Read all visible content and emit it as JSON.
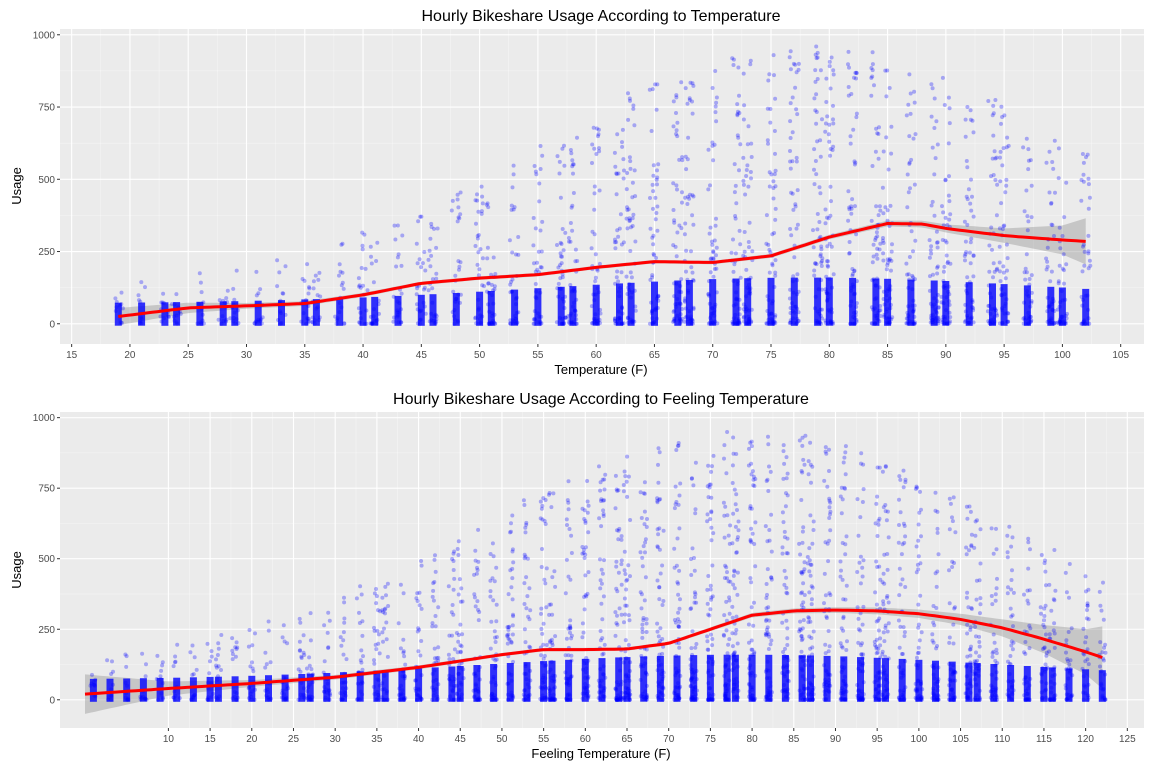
{
  "colors": {
    "panel": "#ebebeb",
    "grid_major": "#ffffff",
    "points": "#0000ff",
    "smooth": "#ff0000",
    "ribbon": "#999999"
  },
  "chart_data": [
    {
      "type": "scatter",
      "title": "Hourly Bikeshare Usage According to Temperature",
      "xlabel": "Temperature (F)",
      "ylabel": "Usage",
      "xlim": [
        14,
        107
      ],
      "ylim": [
        -70,
        1020
      ],
      "xticks": [
        15,
        20,
        25,
        30,
        35,
        40,
        45,
        50,
        55,
        60,
        65,
        70,
        75,
        80,
        85,
        90,
        95,
        100,
        105
      ],
      "yticks": [
        0,
        250,
        500,
        750,
        1000
      ],
      "x_levels": [
        19,
        21,
        23,
        24,
        26,
        28,
        29,
        31,
        33,
        35,
        36,
        38,
        40,
        41,
        43,
        45,
        46,
        48,
        50,
        51,
        53,
        55,
        57,
        58,
        60,
        62,
        63,
        65,
        67,
        68,
        70,
        72,
        73,
        75,
        77,
        79,
        80,
        82,
        84,
        85,
        87,
        89,
        90,
        92,
        94,
        95,
        97,
        99,
        100,
        102
      ],
      "usage_peak": {
        "x": 78,
        "y": 970
      },
      "smooth_x": [
        19,
        25,
        30,
        35,
        40,
        45,
        50,
        55,
        60,
        65,
        70,
        75,
        80,
        85,
        88,
        90,
        95,
        100,
        102
      ],
      "smooth_y": [
        25,
        55,
        62,
        70,
        100,
        140,
        158,
        170,
        195,
        215,
        212,
        235,
        300,
        347,
        345,
        330,
        305,
        290,
        285
      ],
      "ci_halfwidth": [
        30,
        18,
        10,
        8,
        7,
        6,
        6,
        6,
        6,
        6,
        6,
        7,
        8,
        10,
        12,
        14,
        25,
        50,
        80
      ]
    },
    {
      "type": "scatter",
      "title": "Hourly Bikeshare Usage According to Feeling Temperature",
      "xlabel": "Feeling Temperature (F)",
      "ylabel": "Usage",
      "xlim": [
        -3,
        127
      ],
      "ylim": [
        -100,
        1020
      ],
      "xticks": [
        10,
        15,
        20,
        25,
        30,
        35,
        40,
        45,
        50,
        55,
        60,
        65,
        70,
        75,
        80,
        85,
        90,
        95,
        100,
        105,
        110,
        115,
        120,
        125
      ],
      "yticks": [
        0,
        250,
        500,
        750,
        1000
      ],
      "x_levels": [
        1,
        3,
        5,
        7,
        9,
        11,
        13,
        15,
        16,
        18,
        20,
        22,
        24,
        26,
        27,
        29,
        31,
        33,
        35,
        36,
        38,
        40,
        42,
        44,
        45,
        47,
        49,
        51,
        53,
        55,
        56,
        58,
        60,
        62,
        64,
        65,
        67,
        69,
        71,
        73,
        75,
        77,
        78,
        80,
        82,
        84,
        86,
        87,
        89,
        91,
        93,
        95,
        96,
        98,
        100,
        102,
        104,
        106,
        107,
        109,
        111,
        113,
        115,
        116,
        118,
        120,
        122
      ],
      "usage_peak": {
        "x": 79,
        "y": 960
      },
      "smooth_x": [
        0,
        10,
        20,
        30,
        40,
        50,
        55,
        60,
        65,
        70,
        75,
        80,
        85,
        90,
        95,
        100,
        105,
        110,
        115,
        120,
        122
      ],
      "smooth_y": [
        20,
        40,
        58,
        80,
        115,
        160,
        178,
        178,
        180,
        200,
        250,
        300,
        315,
        318,
        315,
        305,
        285,
        255,
        215,
        170,
        150
      ],
      "ci_halfwidth": [
        70,
        25,
        12,
        8,
        7,
        6,
        6,
        6,
        6,
        6,
        7,
        8,
        9,
        10,
        12,
        15,
        20,
        30,
        50,
        80,
        110
      ]
    }
  ]
}
